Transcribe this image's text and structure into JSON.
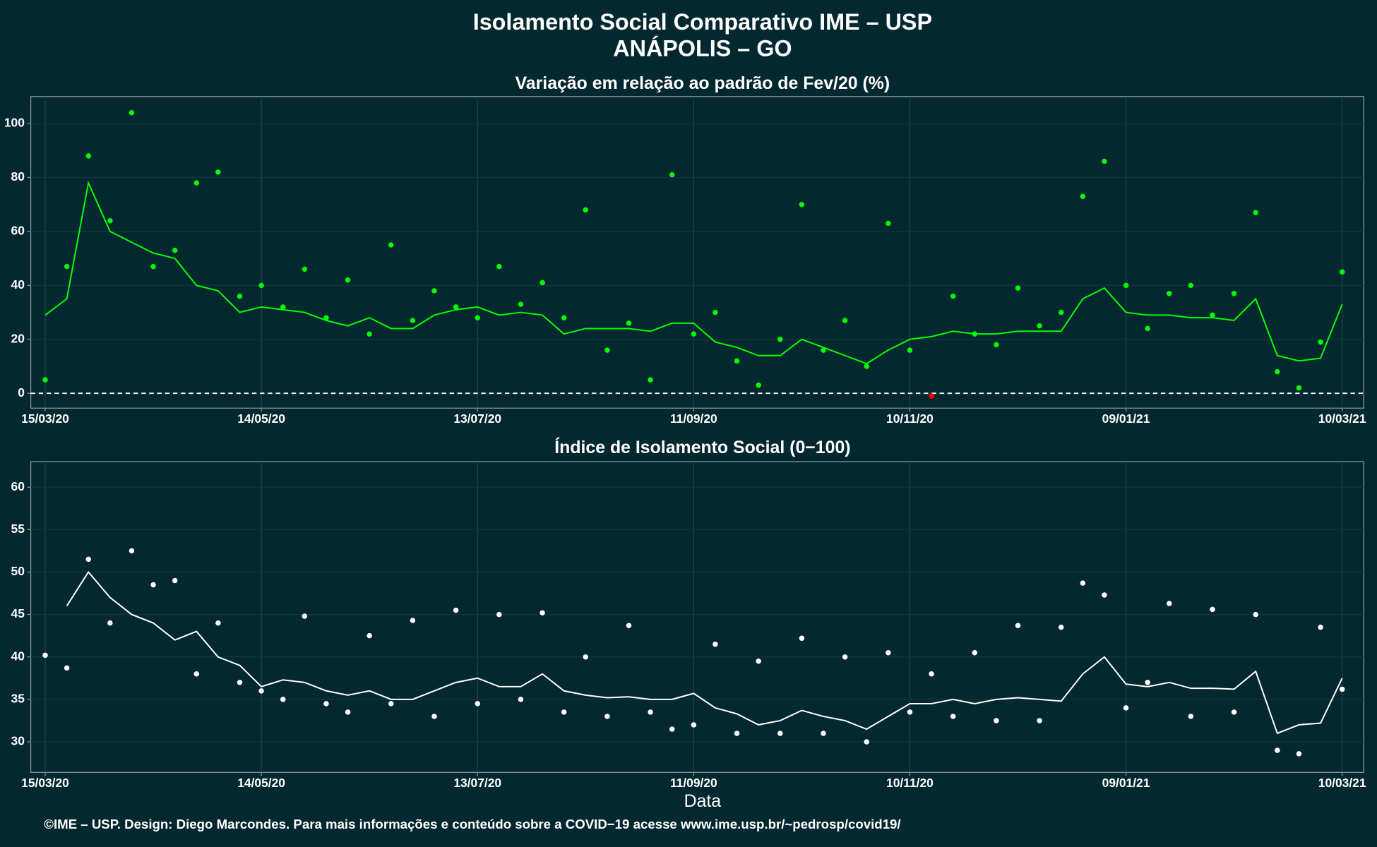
{
  "title": "Isolamento Social Comparativo IME – USP",
  "subtitle": "ANÁPOLIS – GO",
  "footer": "©IME – USP. Design: Diego Marcondes. Para mais informações e conteúdo sobre a COVID−19 acesse www.ime.usp.br/~pedrosp/covid19/",
  "chart_data": [
    {
      "type": "scatter",
      "title": "Variação em relação ao padrão de Fev/20 (%)",
      "x": [
        "2020-03-15",
        "2020-03-21",
        "2020-03-27",
        "2020-04-02",
        "2020-04-08",
        "2020-04-14",
        "2020-04-20",
        "2020-04-26",
        "2020-05-02",
        "2020-05-08",
        "2020-05-14",
        "2020-05-20",
        "2020-05-26",
        "2020-06-01",
        "2020-06-07",
        "2020-06-13",
        "2020-06-19",
        "2020-06-25",
        "2020-07-01",
        "2020-07-07",
        "2020-07-13",
        "2020-07-19",
        "2020-07-25",
        "2020-07-31",
        "2020-08-06",
        "2020-08-12",
        "2020-08-18",
        "2020-08-24",
        "2020-08-30",
        "2020-09-05",
        "2020-09-11",
        "2020-09-17",
        "2020-09-23",
        "2020-09-29",
        "2020-10-05",
        "2020-10-11",
        "2020-10-17",
        "2020-10-23",
        "2020-10-29",
        "2020-11-04",
        "2020-11-10",
        "2020-11-16",
        "2020-11-22",
        "2020-11-28",
        "2020-12-04",
        "2020-12-10",
        "2020-12-16",
        "2020-12-22",
        "2020-12-28",
        "2021-01-03",
        "2021-01-09",
        "2021-01-15",
        "2021-01-21",
        "2021-01-27",
        "2021-02-02",
        "2021-02-08",
        "2021-02-14",
        "2021-02-20",
        "2021-02-26",
        "2021-03-04",
        "2021-03-10"
      ],
      "series": [
        {
          "mode": "points",
          "color": "#00ff00",
          "values": [
            5,
            47,
            88,
            64,
            104,
            47,
            53,
            78,
            82,
            36,
            40,
            32,
            46,
            28,
            42,
            22,
            55,
            27,
            38,
            32,
            28,
            47,
            33,
            41,
            28,
            68,
            16,
            26,
            5,
            81,
            22,
            30,
            12,
            3,
            20,
            70,
            16,
            27,
            10,
            63,
            16,
            -1,
            36,
            22,
            18,
            39,
            25,
            30,
            73,
            86,
            40,
            24,
            37,
            40,
            29,
            37,
            67,
            8,
            2,
            19,
            45
          ]
        },
        {
          "mode": "line",
          "color": "#00ff00",
          "values": [
            29,
            35,
            78,
            60,
            56,
            52,
            50,
            40,
            38,
            30,
            32,
            31,
            30,
            27,
            25,
            28,
            24,
            24,
            29,
            31,
            32,
            29,
            30,
            29,
            22,
            24,
            24,
            24,
            23,
            26,
            26,
            19,
            17,
            14,
            14,
            20,
            17,
            14,
            11,
            16,
            20,
            21,
            23,
            22,
            22,
            23,
            23,
            23,
            35,
            39,
            30,
            29,
            29,
            28,
            28,
            27,
            35,
            14,
            12,
            13,
            33
          ]
        }
      ],
      "negative_color": "#ff0000",
      "hline": 0,
      "xlim": [
        "2020-03-11",
        "2021-03-16"
      ],
      "xticks": [
        {
          "value": "2020-03-15",
          "label": "15/03/20"
        },
        {
          "value": "2020-05-14",
          "label": "14/05/20"
        },
        {
          "value": "2020-07-13",
          "label": "13/07/20"
        },
        {
          "value": "2020-09-11",
          "label": "11/09/20"
        },
        {
          "value": "2020-11-10",
          "label": "10/11/20"
        },
        {
          "value": "2021-01-09",
          "label": "09/01/21"
        },
        {
          "value": "2021-03-10",
          "label": "10/03/21"
        }
      ],
      "ylim": [
        -5.5,
        110
      ],
      "yticks": [
        0,
        20,
        40,
        60,
        80,
        100
      ],
      "grid": true
    },
    {
      "type": "scatter",
      "title": "Índice de Isolamento Social (0−100)",
      "x_label": "Data",
      "x": [
        "2020-03-15",
        "2020-03-21",
        "2020-03-27",
        "2020-04-02",
        "2020-04-08",
        "2020-04-14",
        "2020-04-20",
        "2020-04-26",
        "2020-05-02",
        "2020-05-08",
        "2020-05-14",
        "2020-05-20",
        "2020-05-26",
        "2020-06-01",
        "2020-06-07",
        "2020-06-13",
        "2020-06-19",
        "2020-06-25",
        "2020-07-01",
        "2020-07-07",
        "2020-07-13",
        "2020-07-19",
        "2020-07-25",
        "2020-07-31",
        "2020-08-06",
        "2020-08-12",
        "2020-08-18",
        "2020-08-24",
        "2020-08-30",
        "2020-09-05",
        "2020-09-11",
        "2020-09-17",
        "2020-09-23",
        "2020-09-29",
        "2020-10-05",
        "2020-10-11",
        "2020-10-17",
        "2020-10-23",
        "2020-10-29",
        "2020-11-04",
        "2020-11-10",
        "2020-11-16",
        "2020-11-22",
        "2020-11-28",
        "2020-12-04",
        "2020-12-10",
        "2020-12-16",
        "2020-12-22",
        "2020-12-28",
        "2021-01-03",
        "2021-01-09",
        "2021-01-15",
        "2021-01-21",
        "2021-01-27",
        "2021-02-02",
        "2021-02-08",
        "2021-02-14",
        "2021-02-20",
        "2021-02-26",
        "2021-03-04",
        "2021-03-10"
      ],
      "series": [
        {
          "mode": "points",
          "color": "#ffffff",
          "values": [
            40.2,
            38.7,
            51.5,
            44,
            52.5,
            48.5,
            49,
            38,
            44,
            37,
            36,
            35,
            44.8,
            34.5,
            33.5,
            42.5,
            34.5,
            44.3,
            33,
            45.5,
            34.5,
            45,
            35,
            45.2,
            33.5,
            40,
            33,
            43.7,
            33.5,
            31.5,
            32,
            41.5,
            31,
            39.5,
            31,
            42.2,
            31,
            40,
            30,
            40.5,
            33.5,
            38,
            33,
            40.5,
            32.5,
            43.7,
            32.5,
            43.5,
            48.7,
            47.3,
            34,
            37,
            46.3,
            33,
            45.6,
            33.5,
            45,
            29,
            28.6,
            43.5,
            36.2
          ]
        },
        {
          "mode": "line",
          "color": "#ffffff",
          "values": [
            null,
            46,
            50,
            47,
            45,
            44,
            42,
            43,
            40,
            39,
            36.5,
            37.3,
            37,
            36,
            35.5,
            36,
            35,
            35,
            36,
            37,
            37.5,
            36.5,
            36.5,
            38,
            36,
            35.5,
            35.2,
            35.3,
            35,
            35,
            35.7,
            34,
            33.3,
            32,
            32.5,
            33.7,
            33,
            32.5,
            31.5,
            33,
            34.5,
            34.5,
            35,
            34.5,
            35,
            35.2,
            35,
            34.8,
            38,
            40,
            36.8,
            36.5,
            37,
            36.3,
            36.3,
            36.2,
            38.3,
            31,
            32,
            32.2,
            37.5
          ]
        }
      ],
      "xlim": [
        "2020-03-11",
        "2021-03-16"
      ],
      "xticks": [
        {
          "value": "2020-03-15",
          "label": "15/03/20"
        },
        {
          "value": "2020-05-14",
          "label": "14/05/20"
        },
        {
          "value": "2020-07-13",
          "label": "13/07/20"
        },
        {
          "value": "2020-09-11",
          "label": "11/09/20"
        },
        {
          "value": "2020-11-10",
          "label": "10/11/20"
        },
        {
          "value": "2021-01-09",
          "label": "09/01/21"
        },
        {
          "value": "2021-03-10",
          "label": "10/03/21"
        }
      ],
      "ylim": [
        26.4,
        63
      ],
      "yticks": [
        30,
        35,
        40,
        45,
        50,
        55,
        60
      ],
      "grid": true
    }
  ]
}
